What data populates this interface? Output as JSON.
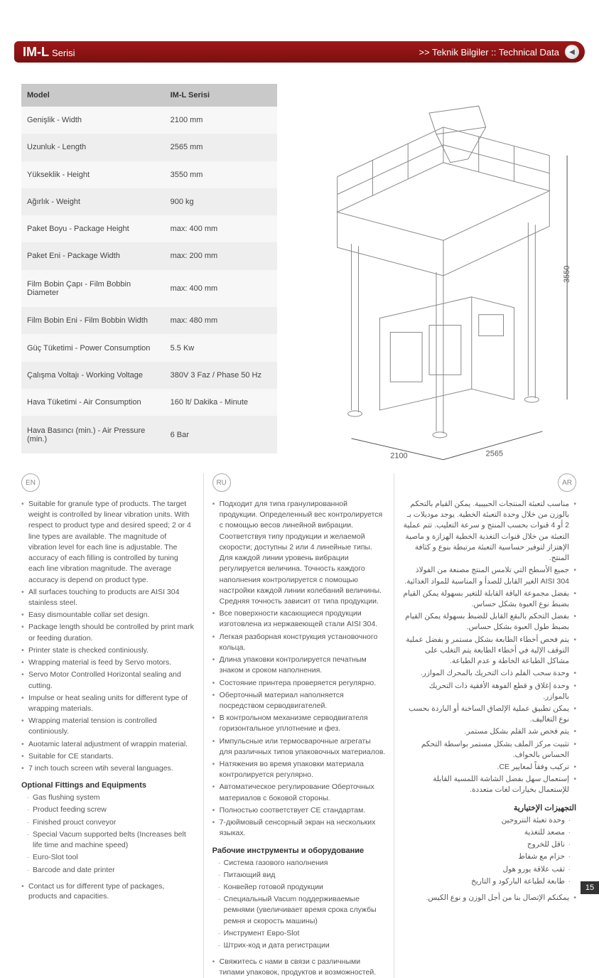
{
  "header": {
    "title_main": "IM-L",
    "title_sub": "Serisi",
    "right_text": ">> Teknik Bilgiler :: Technical Data",
    "arrow": "◀"
  },
  "table": {
    "head_model": "Model",
    "head_value": "IM-L Serisi",
    "rows": [
      {
        "label": "Genişlik - Width",
        "value": "2100 mm"
      },
      {
        "label": "Uzunluk - Length",
        "value": "2565 mm"
      },
      {
        "label": "Yükseklik - Height",
        "value": "3550 mm"
      },
      {
        "label": "Ağırlık - Weight",
        "value": "900 kg"
      },
      {
        "label": "Paket Boyu - Package Height",
        "value": "max: 400 mm"
      },
      {
        "label": "Paket Eni - Package Width",
        "value": "max: 200 mm"
      },
      {
        "label": "Film Bobin Çapı - Film Bobbin Diameter",
        "value": "max: 400 mm"
      },
      {
        "label": "Film Bobin Eni - Film Bobbin Width",
        "value": "max: 480 mm"
      },
      {
        "label": "Güç Tüketimi - Power Consumption",
        "value": "5.5 Kw"
      },
      {
        "label": "Çalışma Voltajı - Working Voltage",
        "value": "380V 3 Faz / Phase 50 Hz"
      },
      {
        "label": "Hava Tüketimi - Air Consumption",
        "value": "160 lt/ Dakika - Minute"
      },
      {
        "label": "Hava Basıncı (min.) - Air Pressure (min.)",
        "value": "6 Bar"
      }
    ]
  },
  "diagram": {
    "dim_width": "2100",
    "dim_length": "2565",
    "dim_height": "3550"
  },
  "lang": {
    "en": {
      "badge": "EN",
      "bullets": [
        "Suitable for granule type of products. The target weight is controlled by linear vibration units. With respect to product type and desired speed; 2 or 4 line types are available. The magnitude of vibration level for each line is adjustable. The accuracy of each filling is controlled by tuning each line vibration magnitude. The average accuracy is depend on product type.",
        "All surfaces touching to products are AISI 304 stainless steel.",
        "Easy dismountable collar set design.",
        "Package length should be controlled by print mark or feeding duration.",
        "Printer state is checked continiously.",
        "Wrapping material is feed by Servo motors.",
        "Servo Motor Controlled Horizontal sealing and cutting.",
        "Impulse or heat sealing units for different type of wrapping materials.",
        "Wrapping material tension is controlled continiously.",
        "Auotamic lateral adjustment of wrappin material.",
        "Suitable for CE standarts.",
        "7 inch touch screen wtih several languages."
      ],
      "optional_heading": "Optional Fittings and Equipments",
      "optional": [
        "Gas flushing system",
        "Product feeding screw",
        "Finished prouct conveyor",
        "Special Vacum supported belts (Increases belt life time and machine speed)",
        "Euro-Slot tool",
        "Barcode and date printer"
      ],
      "contact": "Contact us for different type of packages, products and capacities."
    },
    "ru": {
      "badge": "RU",
      "bullets": [
        "Подходит для типа гранулированной продукции. Определенный вес контролируется с помощью весов линейной вибрации. Соответствуя типу продукции и желаемой скорости; доступны 2 или 4 линейные типы. Для каждой линии уровень вибрации регулируется величина. Точность каждого наполнения контролируется с помощью настройки каждой линии колебаний величины. Средняя точность зависит от типа продукции.",
        "Все поверхности касающиеся продукции изготовлена из нержавеющей стали AISI 304.",
        "Легкая разборная конструкция установочного кольца.",
        "Длина упаковки контролируется печатным знаком и сроком наполнения.",
        "Состояние принтера проверяется регулярно.",
        "Оберточный материал наполняется посредством серводвигателей.",
        "В контрольном механизме серводвигателя горизонтальное уплотнение и фез.",
        "Импульсные или термосварочные агрегаты для различных типов упаковочных материалов.",
        "Натяжения во время упаковки материала контролируется регулярно.",
        "Автоматическое регулирование Оберточных материалов с боковой стороны.",
        "Полностью соответствует CE стандартам.",
        "7-дюймовый сенсорный экран на нескольких языках."
      ],
      "optional_heading": "Рабочие инструменты и оборудование",
      "optional": [
        "Система газового наполнения",
        "Питающий вид",
        "Конвейер готовой продукции",
        "Специальный Vacum поддерживаемые ремнями (увеличивает время срока службы ремня и скорость машины)",
        "Инструмент Евро-Slot",
        "Штрих-код и дата регистрации"
      ],
      "contact": "Свяжитесь с нами в связи с различными типами упаковок, продуктов и возможностей."
    },
    "ar": {
      "badge": "AR",
      "bullets": [
        "مناسب لتعبئة المنتجات الحبيبية. يمكن القيام بالتحكم بالوزن من خلال وحدة التعبئة الخطية. يوجد موديلات بـ 2 أو 4 قنوات بحسب المنتج و سرعة التعليب. تتم عملية التعبئة من خلال قنوات التغذية الخطية الهزازة و ماصية الإهتزاز لتوفير حساسية التعبئة مرتبطة بنوع و كثافة المنتج.",
        "جميع الأسطح التي تلامس المنتج مصنعة من الفولاذ AISI 304 الغير القابل للصدأ و المناسبة للمواد الغذائية.",
        "بفضل مجموعة الياقة القابلة للتغير بسهولة يمكن القيام بضبط نوع العبوة بشكل حساس.",
        "بفضل التحكم بالبقع القابل للضبط بسهولة يمكن القيام بضبط طول العبوة بشكل حساس.",
        "يتم فحص أخطاء الطابعة بشكل مستمر و بفضل عملية التوقف الإلية في أخطاء الطابعة يتم التغلب على مشاكل الطباعة الخاطة و عدم الطباعة.",
        "وحدة سحب الفلم ذات التحريك بالمحرك الموازر.",
        "وحدة إغلاق و قطع الفوهة الأفقية ذات التحريك بالموازر.",
        "يمكن تطبيق عملية الإلصاق الساخنة أو الباردة بحسب نوع التغاليف.",
        "يتم فحص شد الفلم بشكل مستمر.",
        "تثبيت مركز الملف بشكل مستمر بواسطة التحكم الحساس بالحواف.",
        "تركيب وفقاً لمعايير CE.",
        "إستعمال سهل بفضل الشاشة اللمسية القابلة للإستعمال بخيارات لغات متعددة."
      ],
      "optional_heading": "التجهيزات الإختيارية",
      "optional": [
        "وحدة تعبئة النتروجين",
        "مصعد للتغذية",
        "ناقل للخروج",
        "حزام مع شفاط",
        "ثقب علاقة يورو هول",
        "طابعة لطباعة الباركود و التاريخ"
      ],
      "contact": "يمكنكم الإتصال بنا من أجل الوزن و نوع الكيس."
    }
  },
  "page_number": "15"
}
